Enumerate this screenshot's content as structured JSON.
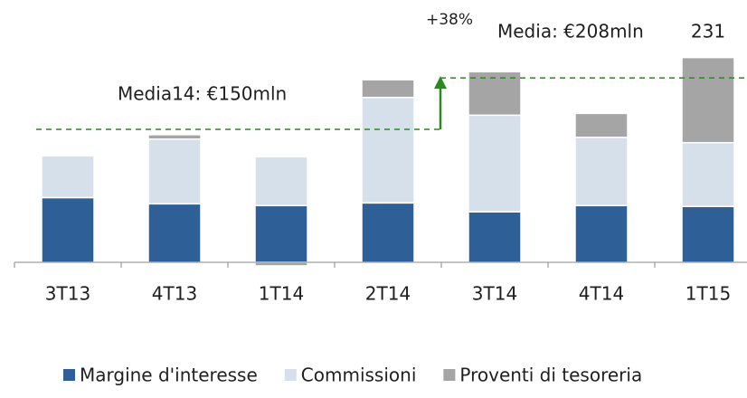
{
  "chart_data": {
    "type": "stacked_bar",
    "categories": [
      "3T13",
      "4T13",
      "1T14",
      "2T14",
      "3T14",
      "4T14",
      "1T15"
    ],
    "series": [
      {
        "name": "Margine d'interesse",
        "color": "#2e5f96",
        "values": [
          73,
          66,
          64,
          67,
          57,
          64,
          63
        ]
      },
      {
        "name": "Commissioni",
        "color": "#d6e0ea",
        "values": [
          47,
          73,
          55,
          119,
          109,
          77,
          72
        ]
      },
      {
        "name": "Proventi di tesoreria",
        "color": "#a5a5a5",
        "values": [
          0,
          5,
          -4,
          20,
          49,
          27,
          96
        ]
      }
    ],
    "totals": [
      null,
      null,
      null,
      null,
      null,
      null,
      231
    ],
    "reference_lines": [
      {
        "label": "Media14: €150mln",
        "value": 150,
        "color": "#2a8a1f"
      },
      {
        "label": "Media: €208mln",
        "value": 208,
        "color": "#2a8a1f"
      }
    ],
    "annotation": "+38%",
    "legend": "bottom"
  }
}
